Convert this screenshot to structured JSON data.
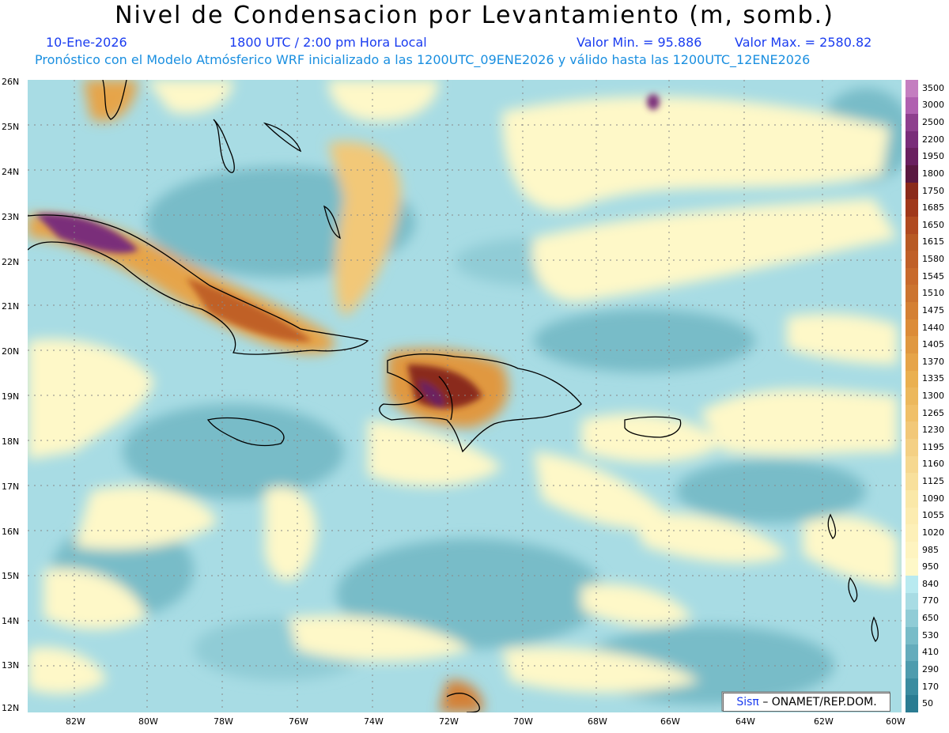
{
  "header": {
    "title": "Nivel de Condensacion por Levantamiento (m, somb.)",
    "date": "10-Ene-2026",
    "time": "1800 UTC / 2:00 pm Hora Local",
    "min_label": "Valor Min. = 95.886",
    "max_label": "Valor Max. = 2580.82",
    "forecast_line": "Pronóstico con el Modelo Atmósferico WRF inicializado a las 1200UTC_09ENE2026 y válido hasta las  1200UTC_12ENE2026"
  },
  "axes": {
    "lat_labels": [
      "26N",
      "25N",
      "24N",
      "23N",
      "22N",
      "21N",
      "20N",
      "19N",
      "18N",
      "17N",
      "16N",
      "15N",
      "14N",
      "13N",
      "12N"
    ],
    "lon_labels": [
      "82W",
      "80W",
      "78W",
      "76W",
      "74W",
      "72W",
      "70W",
      "68W",
      "66W",
      "64W",
      "62W",
      "60W"
    ]
  },
  "legend": {
    "levels": [
      "3500",
      "3000",
      "2500",
      "2200",
      "1950",
      "1800",
      "1750",
      "1685",
      "1650",
      "1615",
      "1580",
      "1545",
      "1510",
      "1475",
      "1440",
      "1405",
      "1370",
      "1335",
      "1300",
      "1265",
      "1230",
      "1195",
      "1160",
      "1125",
      "1090",
      "1055",
      "1020",
      "985",
      "950",
      "840",
      "770",
      "650",
      "530",
      "410",
      "290",
      "170",
      "50"
    ],
    "colors": [
      "#c47ec0",
      "#b060b0",
      "#8e3f8e",
      "#7a2d7a",
      "#6a2060",
      "#5a1840",
      "#8a2a1a",
      "#a0381a",
      "#b04a20",
      "#b85a24",
      "#c06028",
      "#c86a2c",
      "#cc7430",
      "#d48034",
      "#dc8c38",
      "#e09840",
      "#e6a448",
      "#eab050",
      "#ecb85c",
      "#f0c068",
      "#f2c878",
      "#f4d084",
      "#f6d890",
      "#f8e09c",
      "#fae8a8",
      "#fcecb0",
      "#fdf0b8",
      "#fef4c0",
      "#fef8c8",
      "#b8eaf0",
      "#a8dce4",
      "#90ccd6",
      "#78bcc8",
      "#64acbc",
      "#4e9cae",
      "#3a8ca0",
      "#2a7c92"
    ]
  },
  "credit": {
    "brand": "Sisπ",
    "text": "– ONAMET/REP.DOM."
  }
}
